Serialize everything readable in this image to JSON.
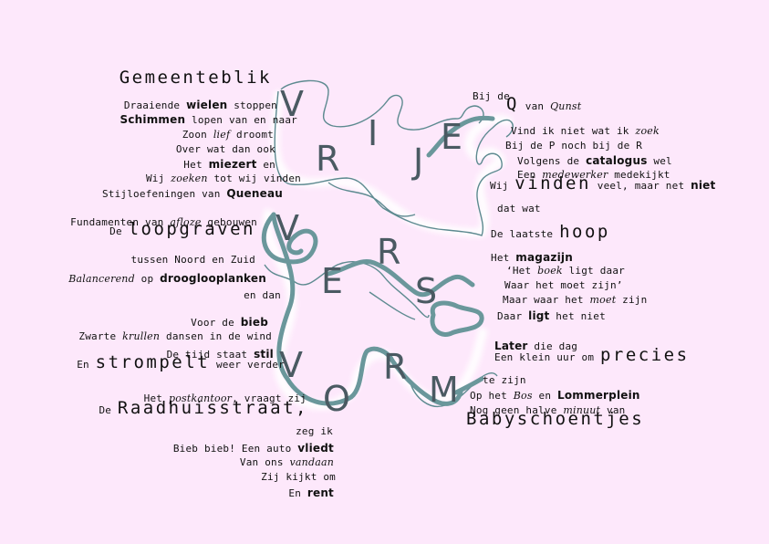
{
  "poem": {
    "left": [
      {
        "segments": [
          {
            "t": "Gemeenteblik",
            "s": "big"
          }
        ]
      },
      {
        "segments": [
          {
            "t": "Draaiende "
          },
          {
            "t": "wielen",
            "s": "b"
          },
          {
            "t": " stoppen"
          }
        ]
      },
      {
        "segments": [
          {
            "t": "Schimmen",
            "s": "b"
          },
          {
            "t": " lopen van en naar"
          }
        ]
      },
      {
        "segments": [
          {
            "t": "Zoon "
          },
          {
            "t": "lief",
            "s": "i"
          },
          {
            "t": " droomt"
          }
        ]
      },
      {
        "segments": [
          {
            "t": "Over wat dan ook"
          }
        ]
      },
      {
        "segments": [
          {
            "t": "Het "
          },
          {
            "t": "miezert",
            "s": "b"
          },
          {
            "t": " en"
          }
        ]
      },
      {
        "segments": [
          {
            "t": "Wij "
          },
          {
            "t": "zoeken",
            "s": "i"
          },
          {
            "t": " tot wij vinden"
          }
        ]
      },
      {
        "segments": [
          {
            "t": "Stijloefeningen van "
          },
          {
            "t": "Queneau",
            "s": "b"
          }
        ]
      },
      {
        "segments": [
          {
            "t": "Fundamenten van "
          },
          {
            "t": "afloze",
            "s": "i"
          },
          {
            "t": " gebouwen"
          }
        ]
      },
      {
        "segments": [
          {
            "t": "De "
          },
          {
            "t": "loopgraven",
            "s": "big"
          }
        ]
      },
      {
        "segments": [
          {
            "t": "tussen Noord en Zuid"
          }
        ]
      },
      {
        "segments": [
          {
            "t": "Balancerend",
            "s": "i"
          },
          {
            "t": " op "
          },
          {
            "t": "drooglooplanken",
            "s": "b"
          }
        ]
      },
      {
        "segments": [
          {
            "t": "en dan"
          }
        ]
      },
      {
        "segments": [
          {
            "t": "Voor de "
          },
          {
            "t": "bieb",
            "s": "b"
          }
        ]
      },
      {
        "segments": [
          {
            "t": "Zwarte "
          },
          {
            "t": "krullen",
            "s": "i"
          },
          {
            "t": " dansen in de wind"
          }
        ]
      },
      {
        "segments": [
          {
            "t": "De tijd staat "
          },
          {
            "t": "stil",
            "s": "b"
          }
        ]
      },
      {
        "segments": [
          {
            "t": "En "
          },
          {
            "t": "strompelt",
            "s": "big"
          },
          {
            "t": " weer verder"
          }
        ]
      },
      {
        "segments": [
          {
            "t": "Het "
          },
          {
            "t": "postkantoor",
            "s": "i"
          },
          {
            "t": ", vraagt zij"
          }
        ]
      },
      {
        "segments": [
          {
            "t": "De "
          },
          {
            "t": "Raadhuisstraat,",
            "s": "big"
          }
        ]
      },
      {
        "segments": [
          {
            "t": "zeg ik"
          }
        ]
      },
      {
        "segments": [
          {
            "t": "Bieb bieb! Een auto "
          },
          {
            "t": "vliedt",
            "s": "b"
          }
        ]
      },
      {
        "segments": [
          {
            "t": "Van ons "
          },
          {
            "t": "vandaan",
            "s": "i"
          }
        ]
      },
      {
        "segments": [
          {
            "t": "Zij kijkt om"
          }
        ]
      },
      {
        "segments": [
          {
            "t": "En "
          },
          {
            "t": "rent",
            "s": "b"
          }
        ]
      }
    ],
    "right": [
      {
        "segments": [
          {
            "t": "Bij de"
          }
        ]
      },
      {
        "segments": [
          {
            "t": "Q",
            "s": "big"
          },
          {
            "t": " van "
          },
          {
            "t": "Qunst",
            "s": "i"
          }
        ]
      },
      {
        "segments": [
          {
            "t": "Vind ik niet wat ik "
          },
          {
            "t": "zoek",
            "s": "i"
          }
        ]
      },
      {
        "segments": [
          {
            "t": "Bij de P noch bij de R"
          }
        ]
      },
      {
        "segments": [
          {
            "t": "Volgens de "
          },
          {
            "t": "catalogus",
            "s": "b"
          },
          {
            "t": " wel"
          }
        ]
      },
      {
        "segments": [
          {
            "t": "Een "
          },
          {
            "t": "medewerker",
            "s": "i"
          },
          {
            "t": " medekijkt"
          }
        ]
      },
      {
        "segments": [
          {
            "t": "Wij "
          },
          {
            "t": "vinden",
            "s": "big"
          },
          {
            "t": " veel, maar net "
          },
          {
            "t": "niet",
            "s": "b"
          }
        ]
      },
      {
        "segments": [
          {
            "t": "dat wat"
          }
        ]
      },
      {
        "segments": [
          {
            "t": "De laatste "
          },
          {
            "t": "hoop",
            "s": "big"
          }
        ]
      },
      {
        "segments": [
          {
            "t": "Het "
          },
          {
            "t": "magazijn",
            "s": "b"
          }
        ]
      },
      {
        "segments": [
          {
            "t": "‘Het "
          },
          {
            "t": "boek",
            "s": "i"
          },
          {
            "t": " ligt daar"
          }
        ]
      },
      {
        "segments": [
          {
            "t": "Waar het moet zijn’"
          }
        ]
      },
      {
        "segments": [
          {
            "t": "Maar waar het "
          },
          {
            "t": "moet",
            "s": "i"
          },
          {
            "t": " zijn"
          }
        ]
      },
      {
        "segments": [
          {
            "t": "Daar "
          },
          {
            "t": "ligt",
            "s": "b"
          },
          {
            "t": " het niet"
          }
        ]
      },
      {
        "segments": [
          {
            "t": "Later",
            "s": "b"
          },
          {
            "t": " die dag"
          }
        ]
      },
      {
        "segments": [
          {
            "t": "Een klein uur om "
          },
          {
            "t": "precies",
            "s": "big"
          }
        ]
      },
      {
        "segments": [
          {
            "t": "te zijn"
          }
        ]
      },
      {
        "segments": [
          {
            "t": "Op het "
          },
          {
            "t": "Bos",
            "s": "i"
          },
          {
            "t": " en "
          },
          {
            "t": "Lommerplein",
            "s": "b"
          }
        ]
      },
      {
        "segments": [
          {
            "t": "Nog geen halve "
          },
          {
            "t": "minuut",
            "s": "i"
          },
          {
            "t": " van"
          }
        ]
      },
      {
        "segments": [
          {
            "t": "Babyschoentjes",
            "s": "big"
          }
        ]
      }
    ],
    "letters": [
      "V",
      "R",
      "I",
      "J",
      "E",
      "V",
      "E",
      "R",
      "S",
      "V",
      "O",
      "R",
      "M"
    ]
  },
  "colors": {
    "background": "#fde8fb",
    "thick_line": "#6a979b",
    "thin_line": "#5d8a90",
    "letters": "#4a5a62"
  }
}
